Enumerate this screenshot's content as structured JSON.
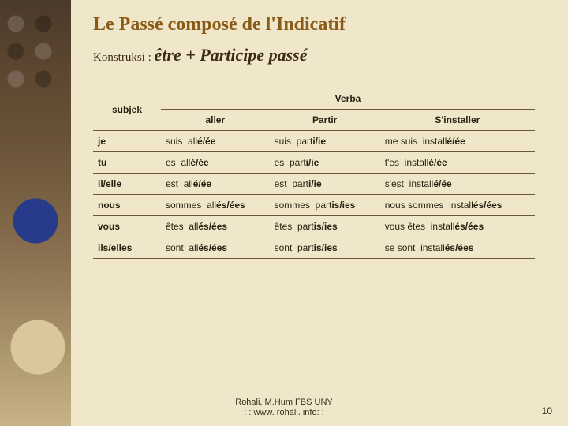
{
  "colors": {
    "background": "#f0e7ca",
    "title": "#8a5a18",
    "text": "#2a1e10",
    "border": "#6a583a"
  },
  "title": "Le Passé composé de l'Indicatif",
  "konstruksi_label": "Konstruksi :",
  "konstruksi_value": "être + Participe passé",
  "headers": {
    "subjek": "subjek",
    "verba": "Verba",
    "cols": [
      "aller",
      "Partir",
      "S'installer"
    ]
  },
  "rows": [
    {
      "pron": "je",
      "c1": {
        "aux": "suis",
        "stem": "all",
        "end": "é/ée"
      },
      "c2": {
        "aux": "suis",
        "stem": "part",
        "end": "i/ie"
      },
      "c3": {
        "aux": "me suis",
        "stem": "install",
        "end": "é/ée"
      }
    },
    {
      "pron": "tu",
      "c1": {
        "aux": "es",
        "stem": "all",
        "end": "é/ée"
      },
      "c2": {
        "aux": "es",
        "stem": "part",
        "end": "i/ie"
      },
      "c3": {
        "aux": "t'es",
        "stem": "install",
        "end": "é/ée"
      }
    },
    {
      "pron": "il/elle",
      "c1": {
        "aux": "est",
        "stem": "all",
        "end": "é/ée"
      },
      "c2": {
        "aux": "est",
        "stem": "part",
        "end": "i/ie"
      },
      "c3": {
        "aux": "s'est",
        "stem": "install",
        "end": "é/ée"
      }
    },
    {
      "pron": "nous",
      "c1": {
        "aux": "sommes",
        "stem": "all",
        "end": "és/ées"
      },
      "c2": {
        "aux": "sommes",
        "stem": "part",
        "end": "is/ies"
      },
      "c3": {
        "aux": "nous sommes",
        "stem": "install",
        "end": "és/ées"
      }
    },
    {
      "pron": "vous",
      "c1": {
        "aux": "êtes",
        "stem": "all",
        "end": "és/ées"
      },
      "c2": {
        "aux": "êtes",
        "stem": "part",
        "end": "is/ies"
      },
      "c3": {
        "aux": "vous êtes",
        "stem": "install",
        "end": "és/ées"
      }
    },
    {
      "pron": "ils/elles",
      "c1": {
        "aux": "sont",
        "stem": "all",
        "end": "és/ées"
      },
      "c2": {
        "aux": "sont",
        "stem": "part",
        "end": "is/ies"
      },
      "c3": {
        "aux": "se sont",
        "stem": "install",
        "end": "és/ées"
      }
    }
  ],
  "footer": {
    "line1": "Rohali, M.Hum FBS UNY",
    "line2": ": : www. rohali. info: :"
  },
  "page": "10"
}
